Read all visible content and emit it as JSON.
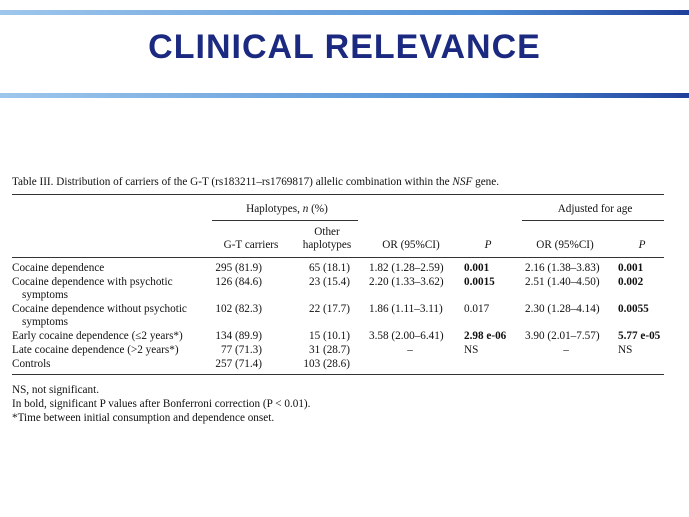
{
  "slide": {
    "title": "CLINICAL  RELEVANCE",
    "accent_color": "#1b2a80"
  },
  "table": {
    "caption_prefix": "Table III.  Distribution of carriers of the G-T (rs183211–rs1769817) allelic combination within the ",
    "caption_gene": "NSF",
    "caption_suffix": " gene.",
    "group_haplotypes": "Haplotypes, n (%)",
    "group_adjusted": "Adjusted for age",
    "col_gt": "G-T carriers",
    "col_other_line1": "Other",
    "col_other_line2": "haplotypes",
    "col_or": "OR (95%CI)",
    "col_p": "P",
    "col_or_adj": "OR (95%CI)",
    "col_p_adj": "P",
    "rows": [
      {
        "label": "Cocaine dependence",
        "label2": "",
        "gt": "295 (81.9)",
        "other": "65 (18.1)",
        "or": "1.82 (1.28–2.59)",
        "p": "0.001",
        "or_adj": "2.16 (1.38–3.83)",
        "p_adj": "0.001"
      },
      {
        "label": "Cocaine dependence with psychotic",
        "label2": "symptoms",
        "gt": "126 (84.6)",
        "other": "23 (15.4)",
        "or": "2.20 (1.33–3.62)",
        "p": "0.0015",
        "or_adj": "2.51 (1.40–4.50)",
        "p_adj": "0.002"
      },
      {
        "label": "Cocaine dependence without psychotic",
        "label2": "symptoms",
        "gt": "102 (82.3)",
        "other": "22 (17.7)",
        "or": "1.86 (1.11–3.11)",
        "p": "0.017",
        "or_adj": "2.30 (1.28–4.14)",
        "p_adj": "0.0055"
      },
      {
        "label": "Early cocaine dependence (≤2 years*)",
        "label2": "",
        "gt": "134 (89.9)",
        "other": "15 (10.1)",
        "or": "3.58 (2.00–6.41)",
        "p": "2.98 e-06",
        "or_adj": "3.90 (2.01–7.57)",
        "p_adj": "5.77 e-05"
      },
      {
        "label": "Late cocaine dependence (>2 years*)",
        "label2": "",
        "gt": "77 (71.3)",
        "other": "31 (28.7)",
        "or": "–",
        "p": "NS",
        "or_adj": "–",
        "p_adj": "NS"
      },
      {
        "label": "Controls",
        "label2": "",
        "gt": "257 (71.4)",
        "other": "103 (28.6)",
        "or": "",
        "p": "",
        "or_adj": "",
        "p_adj": ""
      }
    ],
    "notes": [
      "NS, not significant.",
      "In bold, significant P values after Bonferroni correction (P < 0.01).",
      "*Time between initial consumption and dependence onset."
    ]
  }
}
